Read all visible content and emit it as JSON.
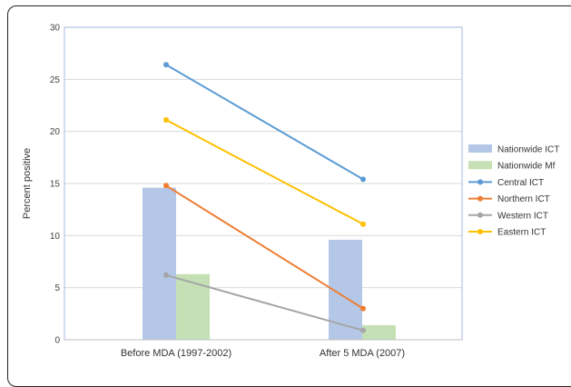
{
  "chart_data": {
    "type": "bar",
    "categories": [
      "Before MDA (1997-2002)",
      "After 5 MDA (2007)"
    ],
    "ylabel": "Percent positive",
    "xlabel": "",
    "ylim": [
      0,
      30
    ],
    "yticks": [
      0,
      5,
      10,
      15,
      20,
      25,
      30
    ],
    "grid": true,
    "legend_position": "right",
    "bar_series": [
      {
        "name": "Nationwide ICT",
        "values": [
          14.6,
          9.6
        ],
        "color": "#b4c7e7"
      },
      {
        "name": "Nationwide Mf",
        "values": [
          6.3,
          1.4
        ],
        "color": "#c5e0b4"
      }
    ],
    "line_series": [
      {
        "name": "Central ICT",
        "values": [
          26.4,
          15.4
        ],
        "color": "#5b9bd5"
      },
      {
        "name": "Northern ICT",
        "values": [
          14.8,
          3.0
        ],
        "color": "#ed7d31"
      },
      {
        "name": "Western ICT",
        "values": [
          6.2,
          0.9
        ],
        "color": "#a5a5a5"
      },
      {
        "name": "Eastern ICT",
        "values": [
          21.1,
          11.1
        ],
        "color": "#ffc000"
      }
    ]
  }
}
